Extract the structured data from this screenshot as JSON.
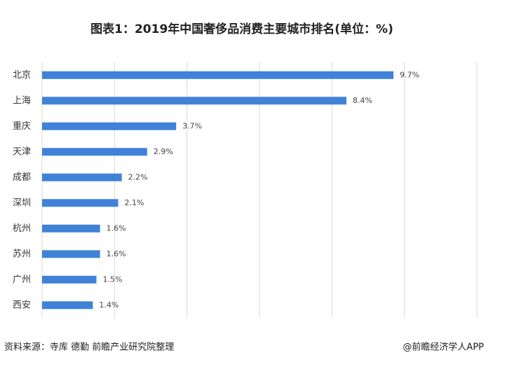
{
  "chart_data": {
    "type": "bar",
    "orientation": "horizontal",
    "title": "图表1：2019年中国奢侈品消费主要城市排名(单位：%)",
    "categories": [
      "北京",
      "上海",
      "重庆",
      "天津",
      "成都",
      "深圳",
      "杭州",
      "苏州",
      "广州",
      "西安"
    ],
    "values": [
      9.7,
      8.4,
      3.7,
      2.9,
      2.2,
      2.1,
      1.6,
      1.6,
      1.5,
      1.4
    ],
    "value_labels": [
      "9.7%",
      "8.4%",
      "3.7%",
      "2.9%",
      "2.2%",
      "2.1%",
      "1.6%",
      "1.6%",
      "1.5%",
      "1.4%"
    ],
    "color": "#3f82d8",
    "xlim": [
      0,
      12
    ],
    "xticks": [
      0,
      2,
      4,
      6,
      8,
      10,
      12
    ],
    "grid": true,
    "source": "资料来源：寺库 德勤 前瞻产业研究院整理",
    "credit": "@前瞻经济学人APP"
  }
}
